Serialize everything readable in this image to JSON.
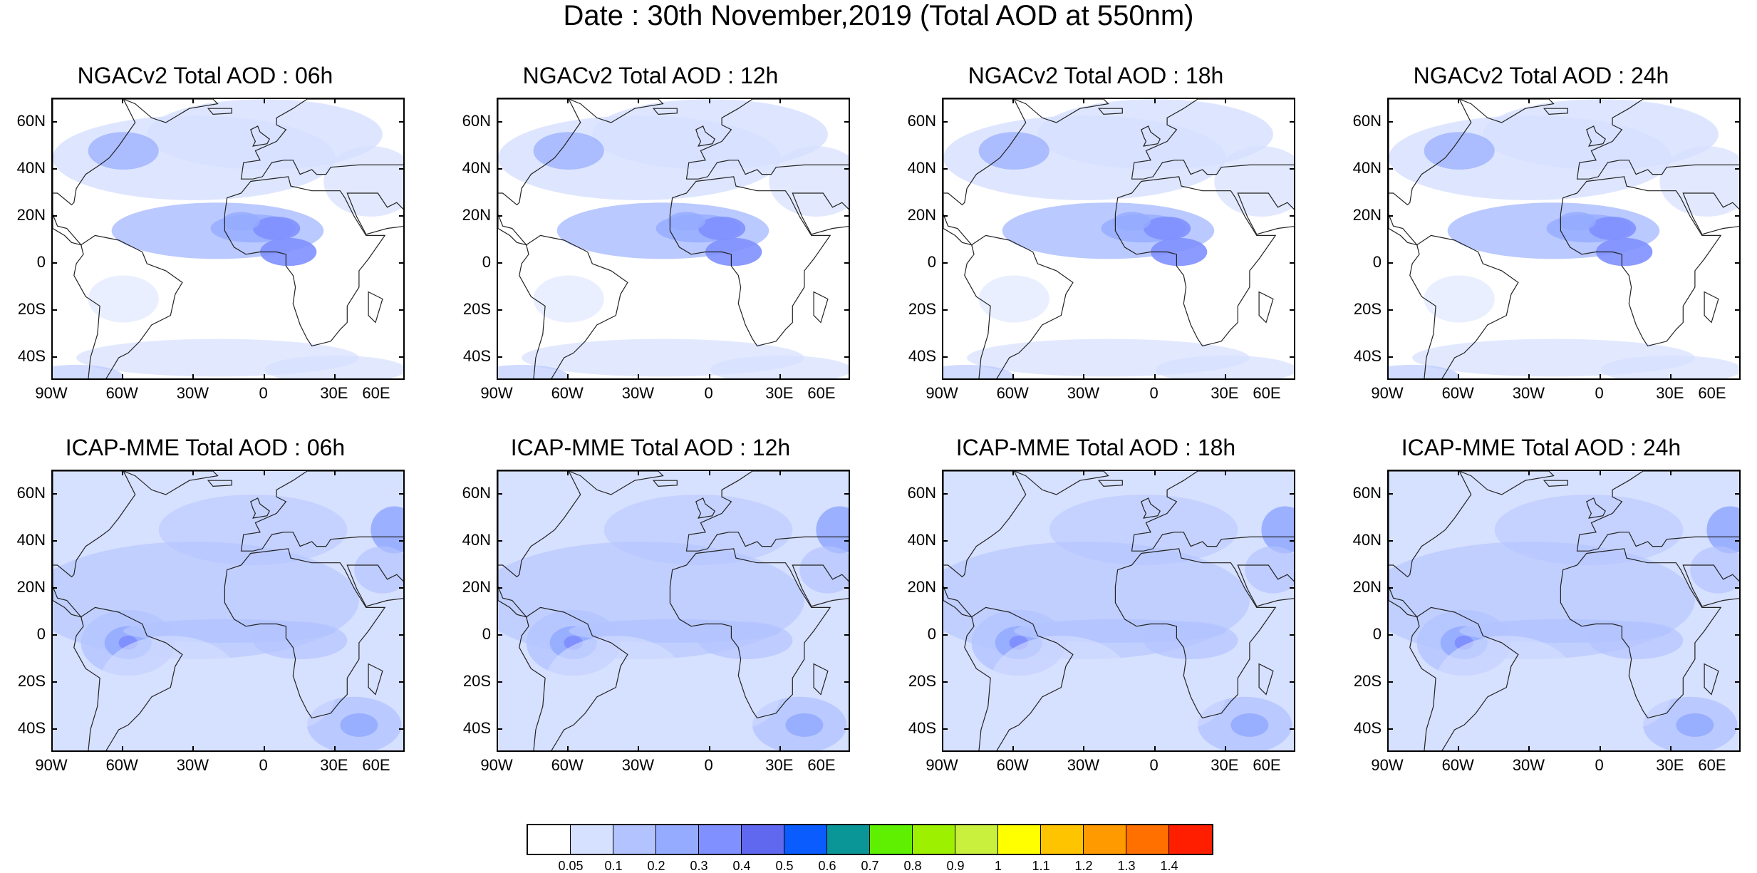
{
  "figure": {
    "title": "Date : 30th November,2019 (Total AOD at 550nm)"
  },
  "axes": {
    "lat_labels": [
      "60N",
      "40N",
      "20N",
      "0",
      "20S",
      "40S"
    ],
    "lat_values": [
      60,
      40,
      20,
      0,
      -20,
      -40
    ],
    "lon_labels": [
      "90W",
      "60W",
      "30W",
      "0",
      "30E",
      "60E"
    ],
    "lon_values": [
      -90,
      -60,
      -30,
      0,
      30,
      60
    ],
    "lat_range": [
      -50,
      70
    ],
    "lon_range": [
      -90,
      60
    ]
  },
  "panels": [
    {
      "title": "NGACv2 Total AOD : 06h",
      "model": "NGACv2",
      "hour": "06h"
    },
    {
      "title": "NGACv2 Total AOD : 12h",
      "model": "NGACv2",
      "hour": "12h"
    },
    {
      "title": "NGACv2 Total AOD : 18h",
      "model": "NGACv2",
      "hour": "18h"
    },
    {
      "title": "NGACv2 Total AOD : 24h",
      "model": "NGACv2",
      "hour": "24h"
    },
    {
      "title": "ICAP-MME Total AOD : 06h",
      "model": "ICAP-MME",
      "hour": "06h"
    },
    {
      "title": "ICAP-MME Total AOD : 12h",
      "model": "ICAP-MME",
      "hour": "12h"
    },
    {
      "title": "ICAP-MME Total AOD : 18h",
      "model": "ICAP-MME",
      "hour": "18h"
    },
    {
      "title": "ICAP-MME Total AOD : 24h",
      "model": "ICAP-MME",
      "hour": "24h"
    }
  ],
  "colorbar": {
    "labels": [
      "0.05",
      "0.1",
      "0.2",
      "0.3",
      "0.4",
      "0.5",
      "0.6",
      "0.7",
      "0.8",
      "0.9",
      "1",
      "1.1",
      "1.2",
      "1.3",
      "1.4"
    ],
    "colors": [
      "#ffffff",
      "#d6e0ff",
      "#b3c3ff",
      "#95abff",
      "#8090ff",
      "#6068f0",
      "#0a5cff",
      "#0a9696",
      "#5ef000",
      "#9cf000",
      "#c8f03c",
      "#ffff00",
      "#ffc400",
      "#ff9a00",
      "#ff7000",
      "#ff1e00"
    ]
  }
}
